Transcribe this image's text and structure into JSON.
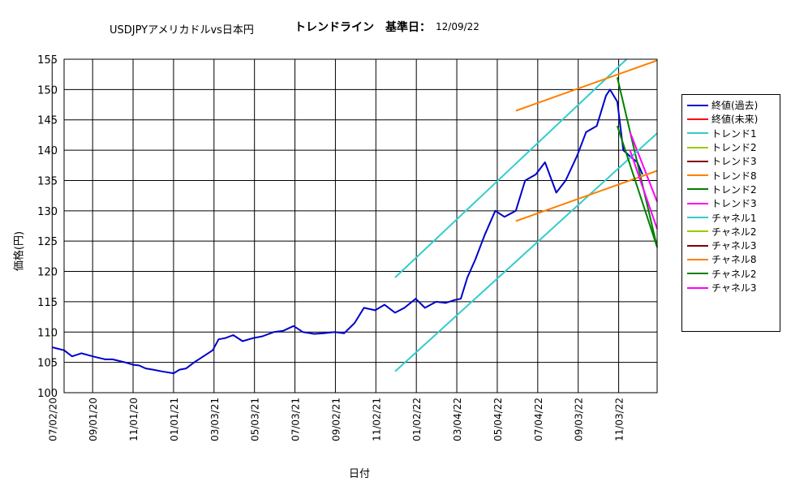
{
  "header": {
    "title": "USDJPYアメリカドルvs日本円",
    "trend_title": "トレンドライン　基準日：",
    "base_date": "12/09/22"
  },
  "axes": {
    "ylabel": "価格(円)",
    "xlabel": "日付"
  },
  "chart_data": {
    "type": "line",
    "title": "USDJPYアメリカドルvs日本円",
    "xlabel": "日付",
    "ylabel": "価格(円)",
    "ylim": [
      100,
      155
    ],
    "yticks": [
      100,
      105,
      110,
      115,
      120,
      125,
      130,
      135,
      140,
      145,
      150,
      155
    ],
    "xlim": [
      "2020-07-20",
      "2022-12-31"
    ],
    "xticks": [
      "07/02/20",
      "09/01/20",
      "11/01/20",
      "01/01/21",
      "03/03/21",
      "05/03/21",
      "07/03/21",
      "09/02/21",
      "11/02/21",
      "01/02/22",
      "03/04/22",
      "05/04/22",
      "07/04/22",
      "09/03/22",
      "11/03/22"
    ],
    "grid": true,
    "legend_position": "right",
    "series": [
      {
        "name": "終値(過去)",
        "color": "#0000cc",
        "width": 2,
        "x": [
          "2020-07-02",
          "2020-07-20",
          "2020-08-01",
          "2020-08-15",
          "2020-09-01",
          "2020-09-20",
          "2020-10-01",
          "2020-10-20",
          "2020-11-01",
          "2020-11-10",
          "2020-11-20",
          "2020-12-01",
          "2020-12-15",
          "2021-01-01",
          "2021-01-10",
          "2021-01-20",
          "2021-02-01",
          "2021-02-15",
          "2021-03-01",
          "2021-03-10",
          "2021-03-20",
          "2021-04-01",
          "2021-04-15",
          "2021-05-01",
          "2021-05-15",
          "2021-06-01",
          "2021-06-15",
          "2021-07-01",
          "2021-07-15",
          "2021-08-01",
          "2021-08-15",
          "2021-09-01",
          "2021-09-15",
          "2021-10-01",
          "2021-10-15",
          "2021-11-01",
          "2021-11-15",
          "2021-12-01",
          "2021-12-15",
          "2022-01-01",
          "2022-01-15",
          "2022-02-01",
          "2022-02-15",
          "2022-03-01",
          "2022-03-10",
          "2022-03-20",
          "2022-04-01",
          "2022-04-15",
          "2022-05-01",
          "2022-05-15",
          "2022-06-01",
          "2022-06-15",
          "2022-07-01",
          "2022-07-15",
          "2022-08-01",
          "2022-08-15",
          "2022-09-01",
          "2022-09-15",
          "2022-10-01",
          "2022-10-15",
          "2022-10-21",
          "2022-11-01",
          "2022-11-10",
          "2022-11-20",
          "2022-12-01",
          "2022-12-09"
        ],
        "y": [
          107.5,
          107,
          106,
          106.5,
          106,
          105.5,
          105.5,
          105,
          104.6,
          104.5,
          104,
          103.8,
          103.5,
          103.2,
          103.8,
          104,
          105,
          106,
          107,
          108.8,
          109,
          109.5,
          108.5,
          109,
          109.3,
          110,
          110.2,
          111,
          110,
          109.7,
          109.8,
          110,
          109.8,
          111.5,
          114,
          113.6,
          114.5,
          113.2,
          114,
          115.5,
          114,
          115,
          114.8,
          115.3,
          115.5,
          119,
          122,
          126,
          130,
          129,
          130,
          135,
          136,
          138,
          133,
          135,
          139,
          143,
          144,
          149,
          150,
          148,
          140,
          139,
          138,
          136
        ]
      },
      {
        "name": "終値(未来)",
        "color": "#ff0000",
        "width": 2,
        "x": [],
        "y": []
      },
      {
        "name": "トレンド1",
        "color": "#33cccc",
        "width": 2,
        "x": [
          "2021-12-01",
          "2022-11-15"
        ],
        "y": [
          119,
          155
        ]
      },
      {
        "name": "トレンド2",
        "color": "#99cc00",
        "width": 2,
        "x": [],
        "y": []
      },
      {
        "name": "トレンド3",
        "color": "#800000",
        "width": 2,
        "x": [],
        "y": []
      },
      {
        "name": "トレンド8",
        "color": "#ff8000",
        "width": 2,
        "x": [
          "2022-06-01",
          "2022-12-31"
        ],
        "y": [
          146.5,
          154.8
        ]
      },
      {
        "name": "トレンド2",
        "color": "#008000",
        "width": 2,
        "x": [
          "2022-11-01",
          "2022-12-31"
        ],
        "y": [
          152,
          124
        ]
      },
      {
        "name": "トレンド3",
        "color": "#ff00ff",
        "width": 2,
        "x": [
          "2022-11-20",
          "2022-12-31"
        ],
        "y": [
          143,
          131.5
        ]
      },
      {
        "name": "チャネル1",
        "color": "#33cccc",
        "width": 2,
        "x": [
          "2021-12-01",
          "2022-12-31"
        ],
        "y": [
          103.5,
          142.8
        ]
      },
      {
        "name": "チャネル2",
        "color": "#99cc00",
        "width": 2,
        "x": [],
        "y": []
      },
      {
        "name": "チャネル3",
        "color": "#800000",
        "width": 2,
        "x": [],
        "y": []
      },
      {
        "name": "チャネル8",
        "color": "#ff8000",
        "width": 2,
        "x": [
          "2022-06-01",
          "2022-12-31"
        ],
        "y": [
          128.3,
          136.6
        ]
      },
      {
        "name": "チャネル2",
        "color": "#008000",
        "width": 2,
        "x": [
          "2022-11-01",
          "2022-12-31"
        ],
        "y": [
          144,
          124
        ]
      },
      {
        "name": "チャネル3",
        "color": "#ff00ff",
        "width": 2,
        "x": [
          "2022-11-20",
          "2022-12-31"
        ],
        "y": [
          140,
          127
        ]
      }
    ]
  }
}
